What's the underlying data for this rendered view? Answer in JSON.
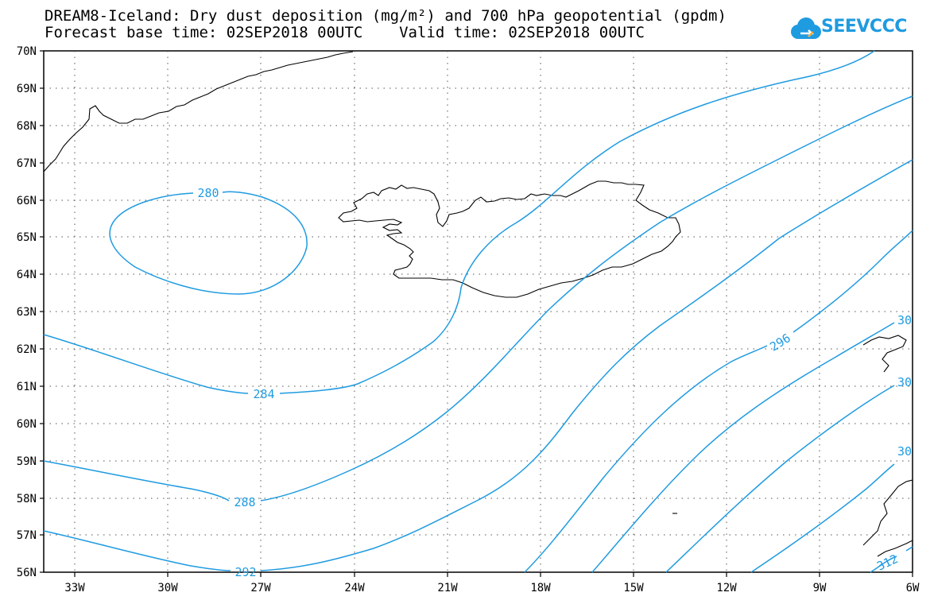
{
  "title": {
    "line1": "DREAM8-Iceland: Dry dust deposition (mg/m²) and 700 hPa geopotential (gpdm)",
    "line2": "Forecast base time: 02SEP2018 00UTC    Valid time: 02SEP2018 00UTC"
  },
  "logo": {
    "text": "SEEVCCC",
    "icon": "cloud-arrow-icon"
  },
  "map": {
    "lon_range": [
      -34,
      -6
    ],
    "lat_range": [
      56,
      70
    ],
    "gridlines": "dotted",
    "lat_labels": [
      "70N",
      "69N",
      "68N",
      "67N",
      "66N",
      "65N",
      "64N",
      "63N",
      "62N",
      "61N",
      "60N",
      "59N",
      "58N",
      "57N",
      "56N"
    ],
    "lon_labels": [
      "33W",
      "30W",
      "27W",
      "24W",
      "21W",
      "18W",
      "15W",
      "12W",
      "9W",
      "6W"
    ],
    "contour_color": "#1f9be0",
    "contour_labels": [
      "280",
      "284",
      "288",
      "292",
      "296",
      "30",
      "30",
      "30",
      "312"
    ]
  }
}
